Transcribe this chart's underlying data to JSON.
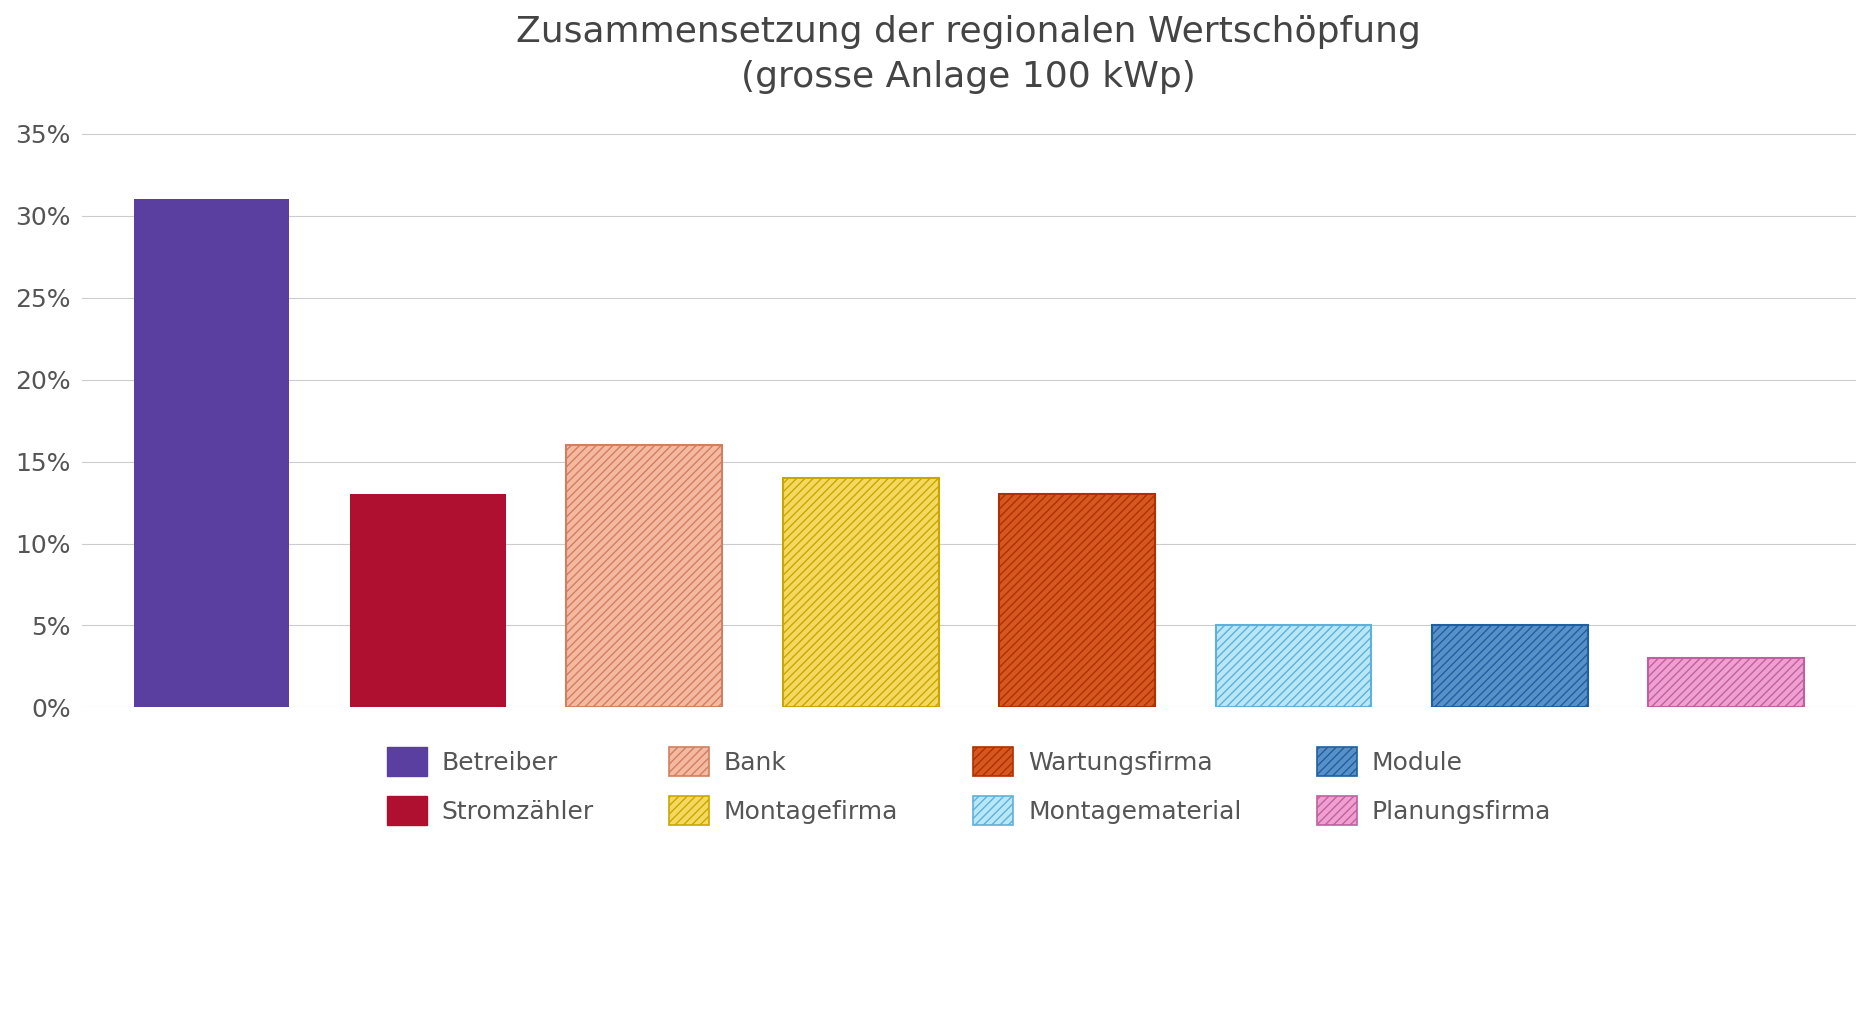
{
  "title": "Zusammensetzung der regionalen Wertschöpfung\n(grosse Anlage 100 kWp)",
  "categories": [
    "Betreiber",
    "Stromzähler",
    "Bank",
    "Montagefirma",
    "Wartungsfirma",
    "Montagematerial",
    "Module",
    "Planungsfirma"
  ],
  "values": [
    0.31,
    0.13,
    0.16,
    0.14,
    0.13,
    0.05,
    0.05,
    0.03
  ],
  "bar_facecolors": [
    "#5B3FA0",
    "#B01030",
    "#F5B8A0",
    "#F5D860",
    "#D45820",
    "#B8E8F8",
    "#5890C8",
    "#F0A0D0"
  ],
  "bar_edgecolors": [
    "#5B3FA0",
    "#B01030",
    "#D08060",
    "#C8A800",
    "#B03000",
    "#60B0D8",
    "#2060A0",
    "#C060A0"
  ],
  "hatch_patterns": [
    null,
    null,
    "////",
    "////",
    "////",
    "////",
    "////",
    "////"
  ],
  "ylim": [
    0,
    0.36
  ],
  "yticks": [
    0,
    0.05,
    0.1,
    0.15,
    0.2,
    0.25,
    0.3,
    0.35
  ],
  "ytick_labels": [
    "0%",
    "5%",
    "10%",
    "15%",
    "20%",
    "25%",
    "30%",
    "35%"
  ],
  "legend_order": [
    "Betreiber",
    "Stromzähler",
    "Bank",
    "Montagefirma",
    "Wartungsfirma",
    "Montagematerial",
    "Module",
    "Planungsfirma"
  ],
  "legend_facecolors": [
    "#5B3FA0",
    "#B01030",
    "#F5B8A0",
    "#F5D860",
    "#D45820",
    "#B8E8F8",
    "#5890C8",
    "#F0A0D0"
  ],
  "legend_edgecolors": [
    "#5B3FA0",
    "#B01030",
    "#D08060",
    "#C8A800",
    "#B03000",
    "#60B0D8",
    "#2060A0",
    "#C060A0"
  ],
  "legend_hatches": [
    null,
    null,
    "////",
    "////",
    "////",
    "////",
    "////",
    "////"
  ],
  "background_color": "#ffffff",
  "grid_color": "#cccccc",
  "text_color": "#555555",
  "title_fontsize": 26,
  "tick_fontsize": 18,
  "legend_fontsize": 18,
  "bar_width": 0.72
}
